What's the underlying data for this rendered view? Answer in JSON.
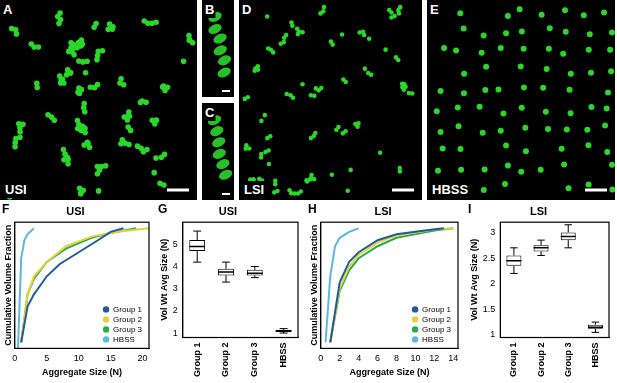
{
  "images": [
    {
      "letter": "A",
      "label": "USI"
    },
    {
      "letter": "B"
    },
    {
      "letter": "C"
    },
    {
      "letter": "D",
      "label": "LSI"
    },
    {
      "letter": "E",
      "label": "HBSS"
    }
  ],
  "chart_data": [
    {
      "letter": "F",
      "type": "line",
      "title": "USI",
      "x_label": "Aggregate Size (N)",
      "y_label": "Cumulative Volume Fraction",
      "xlim": [
        0,
        21
      ],
      "xticks": [
        0,
        5,
        10,
        15,
        20
      ],
      "ylim": [
        0,
        1.05
      ],
      "tick_labels": "x",
      "grid": false,
      "legend": "lower right",
      "series": [
        {
          "name": "Group 1",
          "color": "#1f5c99",
          "x": [
            1,
            2,
            3,
            5,
            7,
            10,
            13,
            15,
            17
          ],
          "values": [
            0.05,
            0.35,
            0.45,
            0.6,
            0.7,
            0.8,
            0.9,
            0.97,
            1.0
          ]
        },
        {
          "name": "Group 2",
          "color": "#e6d23a",
          "x": [
            1,
            2,
            3,
            5,
            8,
            12,
            16,
            21
          ],
          "values": [
            0.05,
            0.45,
            0.6,
            0.72,
            0.85,
            0.93,
            0.97,
            1.0
          ]
        },
        {
          "name": "Group 3",
          "color": "#2ea84f",
          "x": [
            1,
            2,
            3,
            5,
            8,
            12,
            15,
            19
          ],
          "values": [
            0.05,
            0.45,
            0.58,
            0.72,
            0.83,
            0.92,
            0.96,
            1.0
          ]
        },
        {
          "name": "HBSS",
          "color": "#5bb8e0",
          "x": [
            0.5,
            1,
            1.5,
            2,
            3
          ],
          "values": [
            0.0,
            0.75,
            0.9,
            0.95,
            1.0
          ]
        }
      ]
    },
    {
      "letter": "G",
      "type": "box",
      "title": "USI",
      "y_label": "Vol Wt Avg Size (N)",
      "categories": [
        "Group 1",
        "Group 2",
        "Group 3",
        "HBSS"
      ],
      "min": [
        4.2,
        3.3,
        3.5,
        1.0
      ],
      "q1": [
        4.7,
        3.6,
        3.6,
        1.05
      ],
      "median": [
        4.9,
        3.75,
        3.7,
        1.1
      ],
      "q3": [
        5.2,
        3.9,
        3.85,
        1.15
      ],
      "max": [
        5.6,
        4.2,
        4.0,
        1.2
      ],
      "ylim": [
        0.8,
        6
      ],
      "yticks": [
        1,
        2,
        3,
        4,
        5
      ],
      "grid": false,
      "color": "#000000"
    },
    {
      "letter": "H",
      "type": "line",
      "title": "LSI",
      "x_label": "Aggregate Size (N)",
      "y_label": "Cumulative Volume Fraction",
      "xlim": [
        0,
        14.5
      ],
      "xticks": [
        0,
        2,
        4,
        6,
        8,
        10,
        12,
        14
      ],
      "ylim": [
        0,
        1.05
      ],
      "tick_labels": "x",
      "grid": false,
      "legend": "lower right",
      "series": [
        {
          "name": "Group 1",
          "color": "#1f5c99",
          "x": [
            1,
            2,
            3,
            4,
            6,
            8,
            11,
            13
          ],
          "values": [
            0.05,
            0.55,
            0.72,
            0.8,
            0.9,
            0.95,
            0.98,
            1.0
          ]
        },
        {
          "name": "Group 2",
          "color": "#e6d23a",
          "x": [
            1,
            2,
            3,
            4,
            6,
            8,
            12,
            14
          ],
          "values": [
            0.05,
            0.5,
            0.68,
            0.78,
            0.88,
            0.94,
            0.99,
            1.0
          ]
        },
        {
          "name": "Group 3",
          "color": "#2ea84f",
          "x": [
            1,
            2,
            3,
            4,
            6,
            8,
            12,
            14
          ],
          "values": [
            0.05,
            0.48,
            0.65,
            0.75,
            0.85,
            0.92,
            0.98,
            1.0
          ]
        },
        {
          "name": "HBSS",
          "color": "#5bb8e0",
          "x": [
            0.5,
            1,
            1.5,
            2,
            3,
            4
          ],
          "values": [
            0.05,
            0.6,
            0.85,
            0.92,
            0.97,
            1.0
          ]
        }
      ]
    },
    {
      "letter": "I",
      "type": "box",
      "title": "LSI",
      "y_label": "Vol Wt Avg Size (N)",
      "categories": [
        "Group 1",
        "Group 2",
        "Group 3",
        "HBSS"
      ],
      "min": [
        2.2,
        2.55,
        2.7,
        1.05
      ],
      "q1": [
        2.35,
        2.63,
        2.85,
        1.12
      ],
      "median": [
        2.45,
        2.7,
        2.92,
        1.15
      ],
      "q3": [
        2.55,
        2.75,
        3.0,
        1.2
      ],
      "max": [
        2.7,
        2.85,
        3.15,
        1.25
      ],
      "ylim": [
        0.95,
        3.2
      ],
      "yticks": [
        1,
        1.5,
        2,
        2.5,
        3
      ],
      "grid": false,
      "color": "#000000"
    }
  ]
}
